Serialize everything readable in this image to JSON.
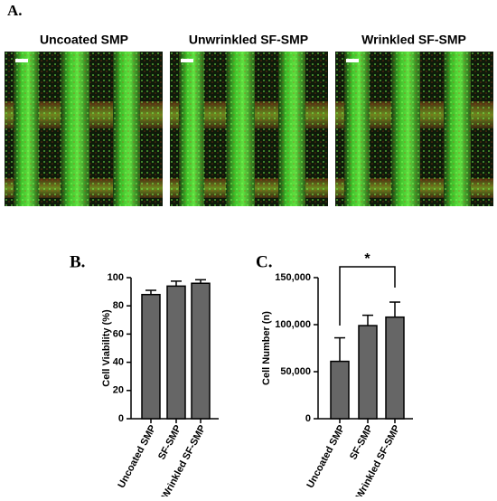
{
  "panel_a": {
    "label": "A.",
    "titles": [
      "Uncoated SMP",
      "Unwrinkled SF-SMP",
      "Wrinkled SF-SMP"
    ]
  },
  "chart_data": [
    {
      "type": "bar",
      "label": "B.",
      "y_label": "Cell Viability (%)",
      "categories": [
        "Uncoated SMP",
        "SF-SMP",
        "Wrinkled SF-SMP"
      ],
      "values": [
        88,
        94,
        96
      ],
      "errors": [
        3,
        3.5,
        2.5
      ],
      "color": "#666666",
      "ylim": [
        0,
        100
      ],
      "yticks": [
        0,
        20,
        40,
        60,
        80,
        100
      ]
    },
    {
      "type": "bar",
      "label": "C.",
      "y_label": "Cell Number (n)",
      "categories": [
        "Uncoated SMP",
        "SF-SMP",
        "Wrinkled SF-SMP"
      ],
      "values": [
        61000,
        99000,
        108000
      ],
      "errors": [
        25000,
        11000,
        16000
      ],
      "color": "#666666",
      "ylim": [
        0,
        150000
      ],
      "yticks": [
        0,
        {
          "value": 50000,
          "label": "50,000"
        },
        {
          "value": 100000,
          "label": "100,000"
        },
        {
          "value": 150000,
          "label": "150,000"
        }
      ],
      "annotation": "*"
    }
  ]
}
